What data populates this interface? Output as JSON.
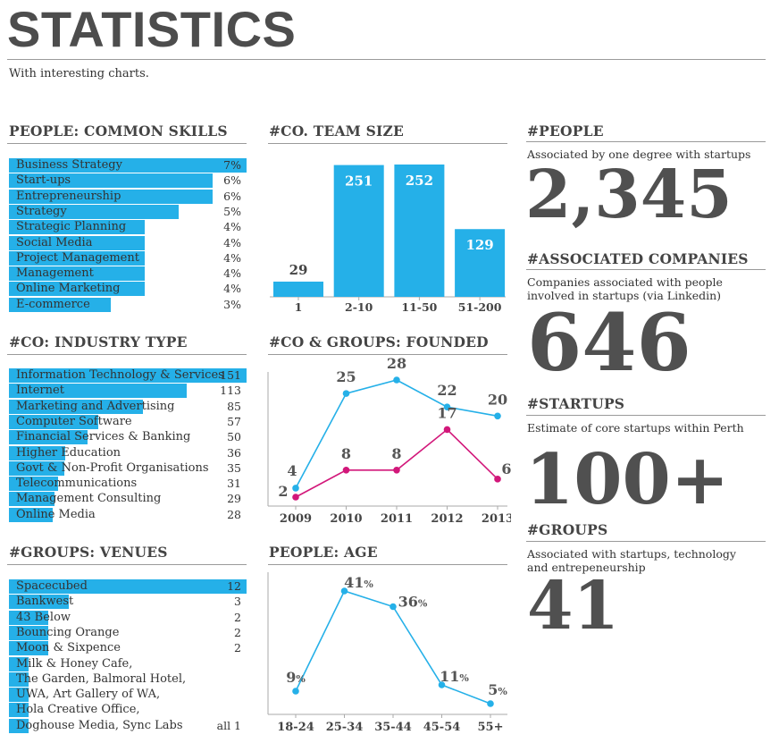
{
  "header": {
    "title": "STATISTICS",
    "subtitle": "With interesting charts."
  },
  "colors": {
    "blue": "#25b0e8",
    "magenta": "#d2177a",
    "text": "#4a4a4a"
  },
  "skills": {
    "title": "PEOPLE: COMMON SKILLS",
    "chart_data": {
      "type": "bar",
      "orientation": "horizontal",
      "categories": [
        "Business Strategy",
        "Start-ups",
        "Entrepreneurship",
        "Strategy",
        "Strategic Planning",
        "Social Media",
        "Project Management",
        "Management",
        "Online Marketing",
        "E-commerce"
      ],
      "values": [
        7,
        6,
        6,
        5,
        4,
        4,
        4,
        4,
        4,
        3
      ],
      "value_labels": [
        "7%",
        "6%",
        "6%",
        "5%",
        "4%",
        "4%",
        "4%",
        "4%",
        "4%",
        "3%"
      ]
    }
  },
  "industry": {
    "title": "#CO: INDUSTRY TYPE",
    "chart_data": {
      "type": "bar",
      "orientation": "horizontal",
      "categories": [
        "Information Technology & Services",
        "Internet",
        "Marketing and Advertising",
        "Computer Software",
        "Financial Services & Banking",
        "Higher Education",
        "Govt & Non-Profit Organisations",
        "Telecommunications",
        "Management Consulting",
        "Online Media"
      ],
      "values": [
        151,
        113,
        85,
        57,
        50,
        36,
        35,
        31,
        29,
        28
      ],
      "value_labels": [
        "151",
        "113",
        "85",
        "57",
        "50",
        "36",
        "35",
        "31",
        "29",
        "28"
      ]
    }
  },
  "venues": {
    "title": "#GROUPS: VENUES",
    "chart_data": {
      "type": "bar",
      "orientation": "horizontal",
      "categories": [
        "Spacecubed",
        "Bankwest",
        "43 Below",
        "Bouncing Orange",
        "Moon & Sixpence",
        "Milk & Honey Cafe,",
        "The Garden, Balmoral Hotel,",
        "UWA, Art Gallery of WA,",
        "Hola Creative Office,",
        "Doghouse Media, Sync Labs"
      ],
      "values": [
        12,
        3,
        2,
        2,
        2,
        1,
        1,
        1,
        1,
        1
      ],
      "value_labels": [
        "12",
        "3",
        "2",
        "2",
        "2",
        "",
        "",
        "",
        "",
        "all 1"
      ]
    }
  },
  "team": {
    "title": "#CO. TEAM SIZE",
    "chart_data": {
      "type": "bar",
      "categories": [
        "1",
        "2-10",
        "11-50",
        "51-200"
      ],
      "values": [
        29,
        251,
        252,
        129
      ]
    }
  },
  "founded": {
    "title": "#CO & GROUPS: FOUNDED",
    "chart_data": {
      "type": "line",
      "x": [
        "2009",
        "2010",
        "2011",
        "2012",
        "2013"
      ],
      "series": [
        {
          "values": [
            4,
            25,
            28,
            22,
            20
          ],
          "color": "#25b0e8"
        },
        {
          "values": [
            2,
            8,
            8,
            17,
            6
          ],
          "color": "#d2177a"
        }
      ]
    }
  },
  "age": {
    "title": "PEOPLE: AGE",
    "chart_data": {
      "type": "line",
      "x": [
        "18-24",
        "25-34",
        "35-44",
        "45-54",
        "55+"
      ],
      "series": [
        {
          "values": [
            9,
            41,
            36,
            11,
            5
          ],
          "color": "#25b0e8"
        }
      ],
      "unit": "%"
    }
  },
  "stats": [
    {
      "title": "#PEOPLE",
      "desc": "Associated by one degree with startups",
      "value": "2,345"
    },
    {
      "title": "#ASSOCIATED COMPANIES",
      "desc": "Companies associated with people involved in startups (via Linkedin)",
      "value": "646"
    },
    {
      "title": "#STARTUPS",
      "desc": "Estimate of core startups within Perth",
      "value": "100+"
    },
    {
      "title": "#GROUPS",
      "desc": "Associated with startups, technology and entrepeneurship",
      "value": "41"
    }
  ]
}
